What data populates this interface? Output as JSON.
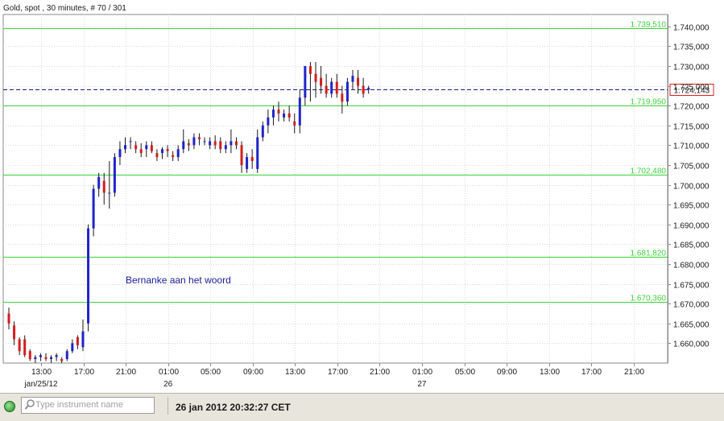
{
  "chart_data": {
    "type": "candlestick",
    "title": "Gold, spot , 30 minutes, # 70 / 301",
    "ylim": [
      1655,
      1743
    ],
    "y_ticks": [
      "1.740,000",
      "1.735,000",
      "1.730,000",
      "1.725,000",
      "1.720,000",
      "1.715,000",
      "1.710,000",
      "1.705,000",
      "1.700,000",
      "1.695,000",
      "1.690,000",
      "1.685,000",
      "1.680,000",
      "1.675,000",
      "1.670,000",
      "1.665,000",
      "1.660,000"
    ],
    "y_tick_values": [
      1740,
      1735,
      1730,
      1725,
      1720,
      1715,
      1710,
      1705,
      1700,
      1695,
      1690,
      1685,
      1680,
      1675,
      1670,
      1665,
      1660
    ],
    "x_ticks": [
      "13:00",
      "17:00",
      "21:00",
      "01:00",
      "05:00",
      "09:00",
      "13:00",
      "17:00",
      "21:00",
      "01:00",
      "05:00",
      "09:00",
      "13:00",
      "17:00",
      "21:00"
    ],
    "date_labels": [
      {
        "text": "jan/25/12",
        "tick": 0
      },
      {
        "text": "26",
        "tick": 3
      },
      {
        "text": "27",
        "tick": 9
      }
    ],
    "grid": true,
    "horizontal_levels": [
      {
        "value": 1739.51,
        "label": "1.739,510"
      },
      {
        "value": 1719.95,
        "label": "1.719,950"
      },
      {
        "value": 1702.48,
        "label": "1.702,480"
      },
      {
        "value": 1681.82,
        "label": "1.681,820"
      },
      {
        "value": 1670.36,
        "label": "1.670,360"
      }
    ],
    "current_price": {
      "value": 1724.143,
      "label": "1.724,143"
    },
    "annotation": "Bernanke aan het woord",
    "candles": [
      [
        1667.5,
        1669,
        1663.5,
        1665
      ],
      [
        1664.5,
        1665.5,
        1659.5,
        1661
      ],
      [
        1661,
        1661.5,
        1657,
        1658
      ],
      [
        1661,
        1662,
        1656.5,
        1657
      ],
      [
        1658,
        1658.5,
        1655.5,
        1656
      ],
      [
        1656,
        1657,
        1655,
        1656.5
      ],
      [
        1656.5,
        1657.5,
        1655.5,
        1657
      ],
      [
        1656.5,
        1657.5,
        1655.5,
        1656
      ],
      [
        1656,
        1657,
        1655,
        1656.5
      ],
      [
        1656.5,
        1657.5,
        1655.5,
        1657
      ],
      [
        1656,
        1656.5,
        1655,
        1655.5
      ],
      [
        1656,
        1658.5,
        1655.5,
        1658
      ],
      [
        1658,
        1661,
        1657.5,
        1660
      ],
      [
        1661.5,
        1662,
        1658.5,
        1659.5
      ],
      [
        1659,
        1666,
        1658,
        1663
      ],
      [
        1665,
        1690,
        1663,
        1689
      ],
      [
        1689,
        1700,
        1687,
        1699
      ],
      [
        1699,
        1703,
        1697,
        1702
      ],
      [
        1701,
        1703,
        1695,
        1698
      ],
      [
        1698,
        1706,
        1694,
        1698
      ],
      [
        1698,
        1708,
        1697,
        1707
      ],
      [
        1707,
        1711,
        1705,
        1709
      ],
      [
        1709,
        1712,
        1708,
        1710
      ],
      [
        1711,
        1712,
        1709,
        1711
      ],
      [
        1710,
        1711,
        1708,
        1709
      ],
      [
        1709,
        1710.5,
        1707,
        1708
      ],
      [
        1709,
        1711,
        1707,
        1710
      ],
      [
        1710,
        1711,
        1708,
        1708.5
      ],
      [
        1708,
        1709,
        1706,
        1707
      ],
      [
        1708,
        1709.5,
        1706.5,
        1709
      ],
      [
        1709,
        1710,
        1707,
        1708.5
      ],
      [
        1707.5,
        1708.5,
        1706,
        1707
      ],
      [
        1707,
        1710,
        1706,
        1709
      ],
      [
        1709,
        1714,
        1708,
        1711
      ],
      [
        1710.5,
        1711.5,
        1708.5,
        1710
      ],
      [
        1710,
        1713,
        1709,
        1712
      ],
      [
        1712,
        1713,
        1710,
        1711.5
      ],
      [
        1711,
        1712,
        1710,
        1711
      ],
      [
        1710,
        1712,
        1709,
        1711
      ],
      [
        1711,
        1712.5,
        1709,
        1710
      ],
      [
        1711,
        1712,
        1708,
        1709
      ],
      [
        1709,
        1711,
        1708,
        1710
      ],
      [
        1710,
        1714,
        1708,
        1711
      ],
      [
        1711,
        1712,
        1709,
        1710
      ],
      [
        1710,
        1711,
        1703,
        1705
      ],
      [
        1704,
        1708,
        1703,
        1707
      ],
      [
        1707,
        1709,
        1704,
        1706
      ],
      [
        1704,
        1714,
        1703,
        1712
      ],
      [
        1712,
        1716,
        1711,
        1715
      ],
      [
        1715,
        1719,
        1713,
        1717
      ],
      [
        1717,
        1720,
        1715,
        1719
      ],
      [
        1719,
        1721,
        1716,
        1718
      ],
      [
        1717,
        1719,
        1716,
        1718
      ],
      [
        1718,
        1720,
        1716,
        1717
      ],
      [
        1716,
        1718,
        1713,
        1715
      ],
      [
        1715,
        1724,
        1713,
        1722
      ],
      [
        1722,
        1730,
        1720,
        1730
      ],
      [
        1730,
        1731,
        1721,
        1728
      ],
      [
        1728,
        1731,
        1722,
        1726
      ],
      [
        1727,
        1730,
        1723,
        1725
      ],
      [
        1725,
        1728,
        1722,
        1723
      ],
      [
        1723,
        1727,
        1722,
        1726
      ],
      [
        1726,
        1728,
        1722,
        1723
      ],
      [
        1723,
        1725,
        1718,
        1721
      ],
      [
        1721,
        1727,
        1720,
        1726
      ],
      [
        1726,
        1729,
        1724,
        1727.5
      ],
      [
        1727,
        1729,
        1723,
        1725
      ],
      [
        1725,
        1727,
        1722,
        1723
      ],
      [
        1724,
        1725,
        1723,
        1724.5
      ]
    ]
  },
  "colors": {
    "up": "#1f24c8",
    "down": "#d21e1e",
    "level": "#3bd23b",
    "current": "#1a1a80",
    "current_box": "#d82020",
    "annotation": "#1a1a9a"
  },
  "status": {
    "search_placeholder": "Type instrument name",
    "search_icon": "magnifier-icon",
    "connection_icon": "green-status-dot-icon",
    "datetime": "26 jan 2012 20:32:27 CET"
  }
}
